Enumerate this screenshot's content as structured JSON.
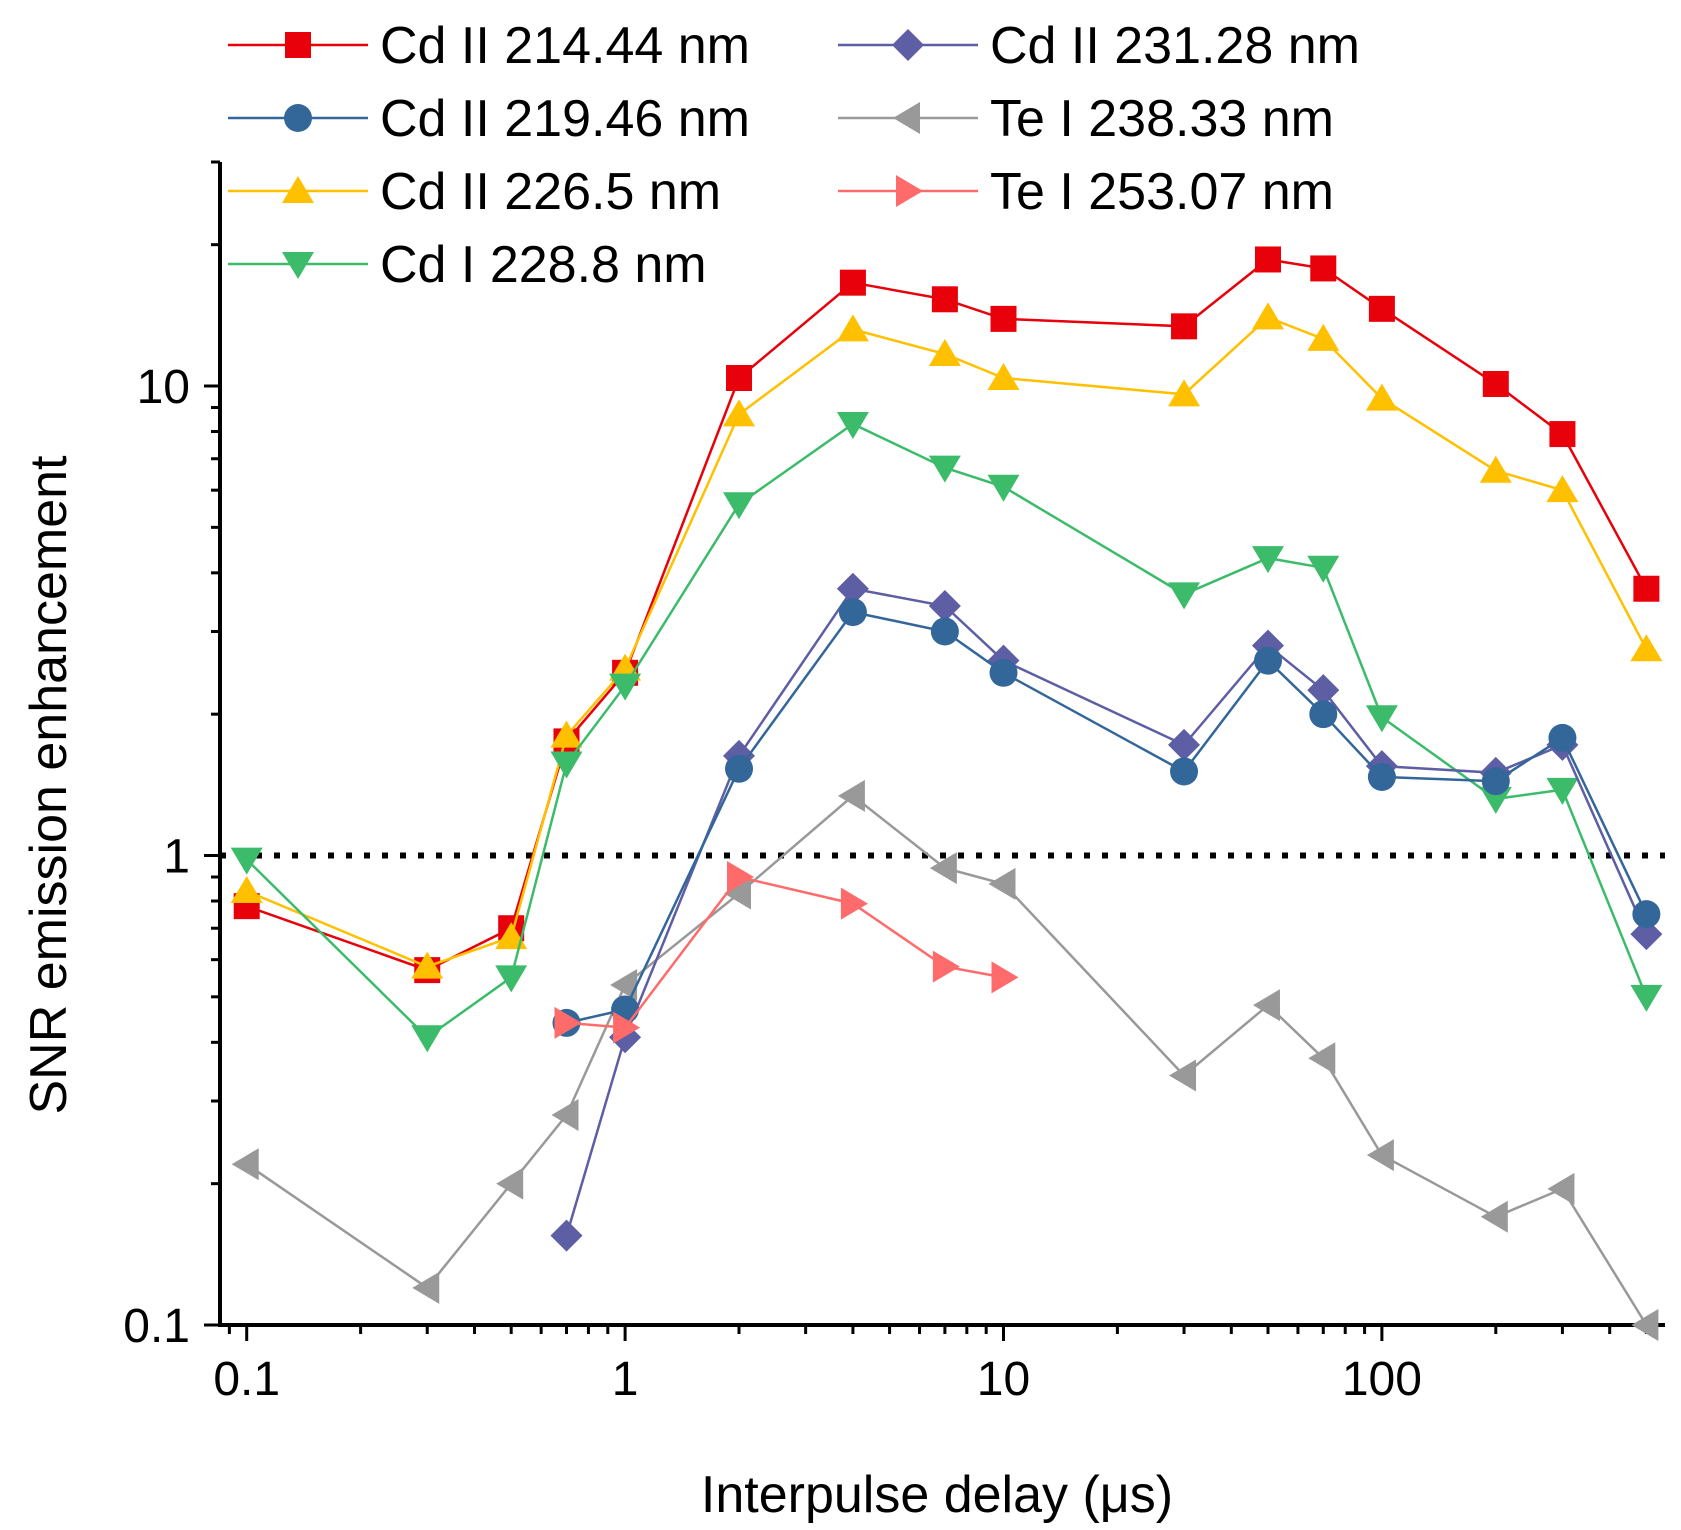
{
  "chart_data": {
    "type": "line",
    "title": "",
    "xlabel": "Interpulse delay (μs)",
    "ylabel": "SNR emission enhancement",
    "xscale": "log",
    "yscale": "log",
    "xlim": [
      0.085,
      560
    ],
    "ylim": [
      0.1,
      30
    ],
    "xticks": [
      {
        "value": 0.1,
        "label": "0.1"
      },
      {
        "value": 1,
        "label": "1"
      },
      {
        "value": 10,
        "label": "10"
      },
      {
        "value": 100,
        "label": "100"
      }
    ],
    "yticks": [
      {
        "value": 0.1,
        "label": "0.1"
      },
      {
        "value": 1,
        "label": "1"
      },
      {
        "value": 10,
        "label": "10"
      }
    ],
    "reference_line": {
      "y": 1,
      "style": "dotted"
    },
    "legend_position": "top-left, two columns",
    "series": [
      {
        "name": "Cd II 214.44 nm",
        "color": "#e8000b",
        "marker": "square",
        "x": [
          0.1,
          0.3,
          0.5,
          0.7,
          1,
          2,
          4,
          7,
          10,
          30,
          50,
          70,
          100,
          200,
          300,
          500
        ],
        "y": [
          0.78,
          0.57,
          0.7,
          1.75,
          2.45,
          10.4,
          16.6,
          15.3,
          13.9,
          13.4,
          18.6,
          17.8,
          14.6,
          10.1,
          7.9,
          3.7
        ]
      },
      {
        "name": "Cd II 219.46 nm",
        "color": "#336699",
        "marker": "circle",
        "x": [
          0.7,
          1,
          2,
          4,
          7,
          10,
          30,
          50,
          70,
          100,
          200,
          300,
          500
        ],
        "y": [
          0.44,
          0.47,
          1.53,
          3.3,
          3.0,
          2.45,
          1.51,
          2.6,
          2.0,
          1.47,
          1.44,
          1.78,
          0.75
        ]
      },
      {
        "name": "Cd II 226.5 nm",
        "color": "#ffc000",
        "marker": "triangle-up",
        "x": [
          0.1,
          0.3,
          0.5,
          0.7,
          1,
          2,
          4,
          7,
          10,
          30,
          50,
          70,
          100,
          200,
          300,
          500
        ],
        "y": [
          0.84,
          0.58,
          0.67,
          1.8,
          2.5,
          8.7,
          13.2,
          11.7,
          10.4,
          9.6,
          14.0,
          12.6,
          9.4,
          6.6,
          6.0,
          2.75
        ]
      },
      {
        "name": "Cd I 228.8 nm",
        "color": "#3cbc6b",
        "marker": "triangle-down",
        "x": [
          0.1,
          0.3,
          0.5,
          0.7,
          1,
          2,
          4,
          7,
          10,
          30,
          50,
          70,
          100,
          200,
          300,
          500
        ],
        "y": [
          0.98,
          0.41,
          0.55,
          1.57,
          2.3,
          5.6,
          8.3,
          6.7,
          6.1,
          3.6,
          4.3,
          4.1,
          1.97,
          1.32,
          1.38,
          0.5
        ]
      },
      {
        "name": "Cd II 231.28 nm",
        "color": "#5d5ea3",
        "marker": "diamond",
        "x": [
          0.7,
          1,
          2,
          4,
          7,
          10,
          30,
          50,
          70,
          100,
          200,
          300,
          500
        ],
        "y": [
          0.155,
          0.41,
          1.63,
          3.7,
          3.4,
          2.6,
          1.72,
          2.8,
          2.25,
          1.55,
          1.5,
          1.72,
          0.68
        ]
      },
      {
        "name": "Te I 238.33 nm",
        "color": "#999999",
        "marker": "triangle-left",
        "x": [
          0.1,
          0.3,
          0.5,
          0.7,
          1,
          2,
          4,
          7,
          10,
          30,
          50,
          70,
          100,
          200,
          300,
          500
        ],
        "y": [
          0.22,
          0.12,
          0.2,
          0.28,
          0.53,
          0.83,
          1.34,
          0.94,
          0.87,
          0.34,
          0.48,
          0.37,
          0.23,
          0.17,
          0.195,
          0.1
        ]
      },
      {
        "name": "Te I 253.07 nm",
        "color": "#ff6b6b",
        "marker": "triangle-right",
        "x": [
          0.7,
          1,
          2,
          4,
          7,
          10
        ],
        "y": [
          0.44,
          0.43,
          0.9,
          0.79,
          0.58,
          0.55
        ]
      }
    ]
  }
}
